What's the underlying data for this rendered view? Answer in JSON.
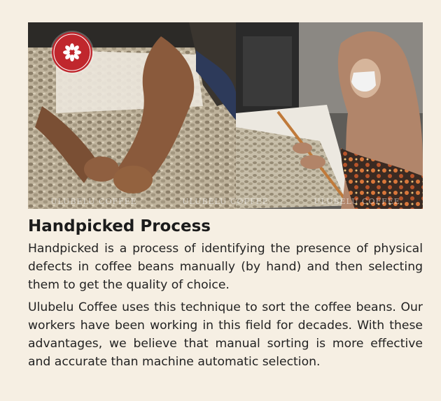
{
  "photos": {
    "logo_text": "ULUBELU COFFEE",
    "watermark": "ULUBELU COFFEE",
    "left_alt": "Hands sorting green coffee beans on a white tray",
    "right_alt": "Worker in hijab and mask sorting coffee beans on a table"
  },
  "article": {
    "title": "Handpicked Process",
    "paragraphs": [
      "Handpicked is a process of identifying the presence of physical defects in coffee beans manually (by hand) and then selecting them to get the quality of choice.",
      "Ulubelu Coffee uses this technique to sort the coffee beans. Our workers have been working in this field for decades. With these advantages, we believe that manual sorting is more effective and accurate than machine automatic selection."
    ]
  },
  "colors": {
    "background": "#f6efe3",
    "logo_red": "#c0272d",
    "text": "#222222"
  }
}
